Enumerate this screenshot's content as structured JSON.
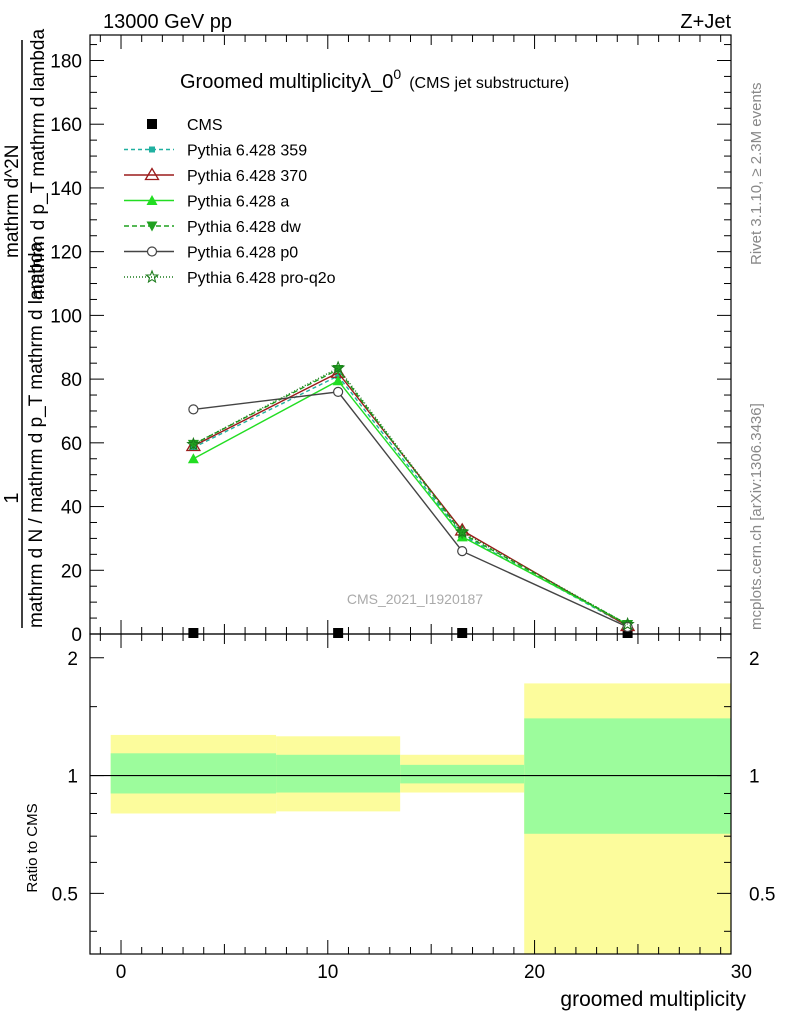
{
  "header": {
    "energy_label": "13000 GeV pp",
    "process_label": "Z+Jet"
  },
  "side_labels": {
    "rivet": "Rivet 3.1.10, ≥ 2.3M events",
    "mcplots": "mcplots.cern.ch [arXiv:1306.3436]"
  },
  "chart_data": [
    {
      "type": "line",
      "title": "Groomed multiplicityλ_0",
      "title_sup": "0",
      "subtitle": "(CMS jet substructure)",
      "watermark": "CMS_2021_I1920187",
      "ylabel_numerator": "1",
      "ylabel_denominator": "mathrm d N / mathrm d p_T mathrm d lambda",
      "ylabel_right": "mathrm d^2N",
      "ylabel_right_denominator": "mathrm d p_T mathrm d lambda",
      "xlim": [
        -1.5,
        29.5
      ],
      "ylim": [
        0,
        188
      ],
      "yticks": [
        0,
        20,
        40,
        60,
        80,
        100,
        120,
        140,
        160,
        180
      ],
      "ytick_labels": [
        "0",
        "20",
        "40",
        "60",
        "80",
        "100",
        "120",
        "140",
        "160",
        "180"
      ],
      "legend_position": "top-left",
      "grid": false,
      "series": [
        {
          "name": "CMS",
          "color": "#000000",
          "marker": "square",
          "dash": "none",
          "x": [
            3.5,
            10.5,
            16.5,
            24.5
          ],
          "y": [
            0.3,
            0.3,
            0.3,
            0.3
          ]
        },
        {
          "name": "Pythia 6.428 359",
          "color": "#20b0a0",
          "marker": "small-square",
          "dash": "4,3",
          "x": [
            3.5,
            10.5,
            16.5,
            24.5
          ],
          "y": [
            58.5,
            81.0,
            31.0,
            2.5
          ]
        },
        {
          "name": "Pythia 6.428 370",
          "color": "#9b1b1b",
          "marker": "open-triangle",
          "dash": "none",
          "x": [
            3.5,
            10.5,
            16.5,
            24.5
          ],
          "y": [
            59.0,
            82.0,
            32.5,
            2.5
          ]
        },
        {
          "name": "Pythia 6.428 a",
          "color": "#22dd22",
          "marker": "triangle",
          "dash": "none",
          "x": [
            3.5,
            10.5,
            16.5,
            24.5
          ],
          "y": [
            55.0,
            79.5,
            30.5,
            3.0
          ]
        },
        {
          "name": "Pythia 6.428 dw",
          "color": "#1fa01f",
          "marker": "triangle-down",
          "dash": "5,3",
          "x": [
            3.5,
            10.5,
            16.5,
            24.5
          ],
          "y": [
            59.5,
            83.0,
            31.5,
            3.0
          ]
        },
        {
          "name": "Pythia 6.428 p0",
          "color": "#444444",
          "marker": "open-circle",
          "dash": "none",
          "x": [
            3.5,
            10.5,
            16.5,
            24.5
          ],
          "y": [
            70.5,
            76.0,
            26.0,
            2.2
          ]
        },
        {
          "name": "Pythia 6.428 pro-q2o",
          "color": "#1a7a1a",
          "marker": "open-star",
          "dash": "1,2",
          "x": [
            3.5,
            10.5,
            16.5,
            24.5
          ],
          "y": [
            59.5,
            83.5,
            32.0,
            3.0
          ]
        }
      ]
    },
    {
      "type": "area",
      "ylabel": "Ratio to CMS",
      "xlabel": "groomed multiplicity",
      "xlim": [
        -1.5,
        29.5
      ],
      "ylim": [
        0.35,
        2.3
      ],
      "yscale": "log",
      "xticks": [
        0,
        10,
        20,
        30
      ],
      "xtick_labels": [
        "0",
        "10",
        "20",
        "30"
      ],
      "yticks": [
        0.5,
        1,
        2
      ],
      "ytick_labels": [
        "0.5",
        "1",
        "2"
      ],
      "reference_line": 1,
      "bands": [
        {
          "x_range": [
            -0.5,
            7.5
          ],
          "inner": [
            0.9,
            1.14
          ],
          "outer": [
            0.8,
            1.27
          ]
        },
        {
          "x_range": [
            7.5,
            13.5
          ],
          "inner": [
            0.905,
            1.13
          ],
          "outer": [
            0.81,
            1.26
          ]
        },
        {
          "x_range": [
            13.5,
            19.5
          ],
          "inner": [
            0.955,
            1.065
          ],
          "outer": [
            0.905,
            1.13
          ]
        },
        {
          "x_range": [
            19.5,
            29.5
          ],
          "inner": [
            0.71,
            1.4
          ],
          "outer": [
            0.35,
            1.72
          ]
        }
      ],
      "band_colors": {
        "inner": "#9cfc9c",
        "outer": "#fcfc9c"
      }
    }
  ]
}
